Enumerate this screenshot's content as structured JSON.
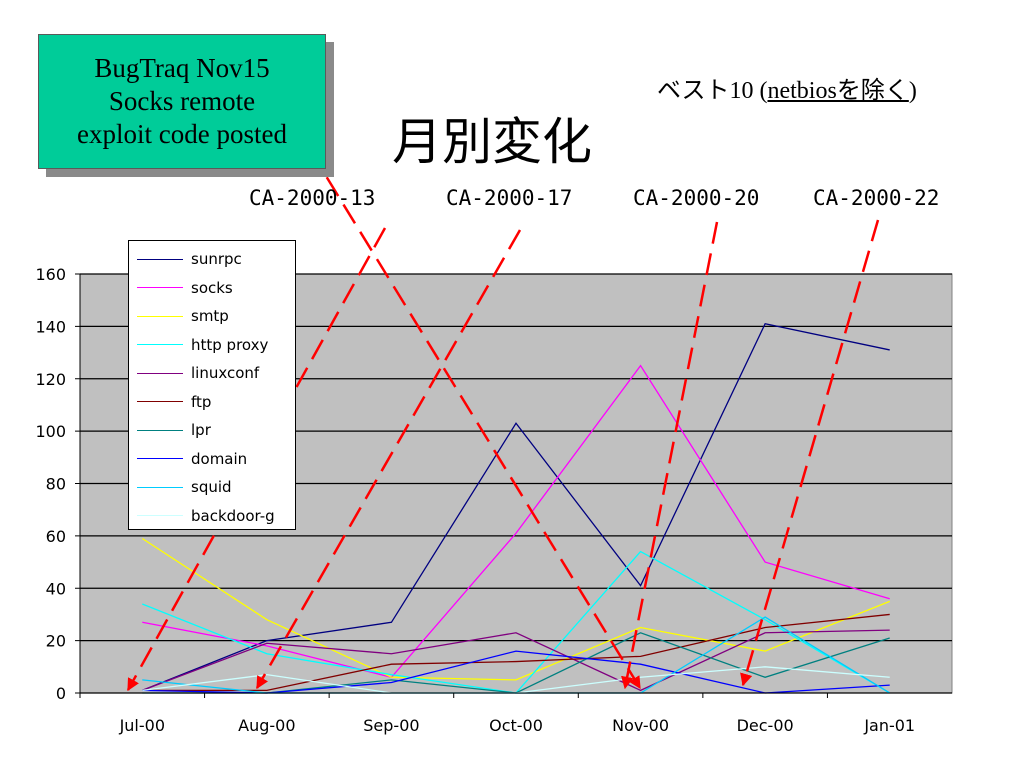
{
  "callout": {
    "lines": [
      "BugTraq  Nov15",
      "Socks remote",
      "exploit code posted"
    ]
  },
  "subtitle": {
    "prefix": "ベスト10 (",
    "underlined": "netbiosを除く",
    "suffix": ")"
  },
  "title": "月別変化",
  "advisories": [
    "CA-2000-13",
    "CA-2000-17",
    "CA-2000-20",
    "CA-2000-22"
  ],
  "colors": {
    "plot_background": "#c0c0c0",
    "arrow": "#ff0000",
    "callout_fill": "#00cc99"
  },
  "chart_data": {
    "type": "line",
    "categories": [
      "Jul-00",
      "Aug-00",
      "Sep-00",
      "Oct-00",
      "Nov-00",
      "Dec-00",
      "Jan-01"
    ],
    "ylim": [
      0,
      160
    ],
    "yticks": [
      0,
      20,
      40,
      60,
      80,
      100,
      120,
      140,
      160
    ],
    "grid": true,
    "legend_position": "top-left",
    "series": [
      {
        "name": "sunrpc",
        "color": "#000080",
        "values": [
          1,
          20,
          27,
          103,
          41,
          141,
          131
        ]
      },
      {
        "name": "socks",
        "color": "#ff00ff",
        "values": [
          27,
          18,
          6,
          61,
          125,
          50,
          36
        ]
      },
      {
        "name": "smtp",
        "color": "#ffff00",
        "values": [
          59,
          28,
          6,
          5,
          25,
          16,
          35
        ]
      },
      {
        "name": "http proxy",
        "color": "#00ffff",
        "values": [
          34,
          15,
          7,
          0,
          54,
          28,
          0
        ]
      },
      {
        "name": "linuxconf",
        "color": "#800080",
        "values": [
          1,
          19,
          15,
          23,
          1,
          23,
          24
        ]
      },
      {
        "name": "ftp",
        "color": "#800000",
        "values": [
          1,
          1,
          11,
          12,
          14,
          25,
          30
        ]
      },
      {
        "name": "lpr",
        "color": "#008080",
        "values": [
          0,
          0,
          5,
          0,
          23,
          6,
          21
        ]
      },
      {
        "name": "domain",
        "color": "#0000ff",
        "values": [
          1,
          0,
          4,
          16,
          11,
          0,
          3
        ]
      },
      {
        "name": "squid",
        "color": "#00ccff",
        "values": [
          5,
          0,
          0,
          0,
          0,
          29,
          0
        ]
      },
      {
        "name": "backdoor-g",
        "color": "#ccffff",
        "values": [
          1,
          7,
          0,
          0,
          6,
          10,
          6
        ]
      }
    ]
  }
}
